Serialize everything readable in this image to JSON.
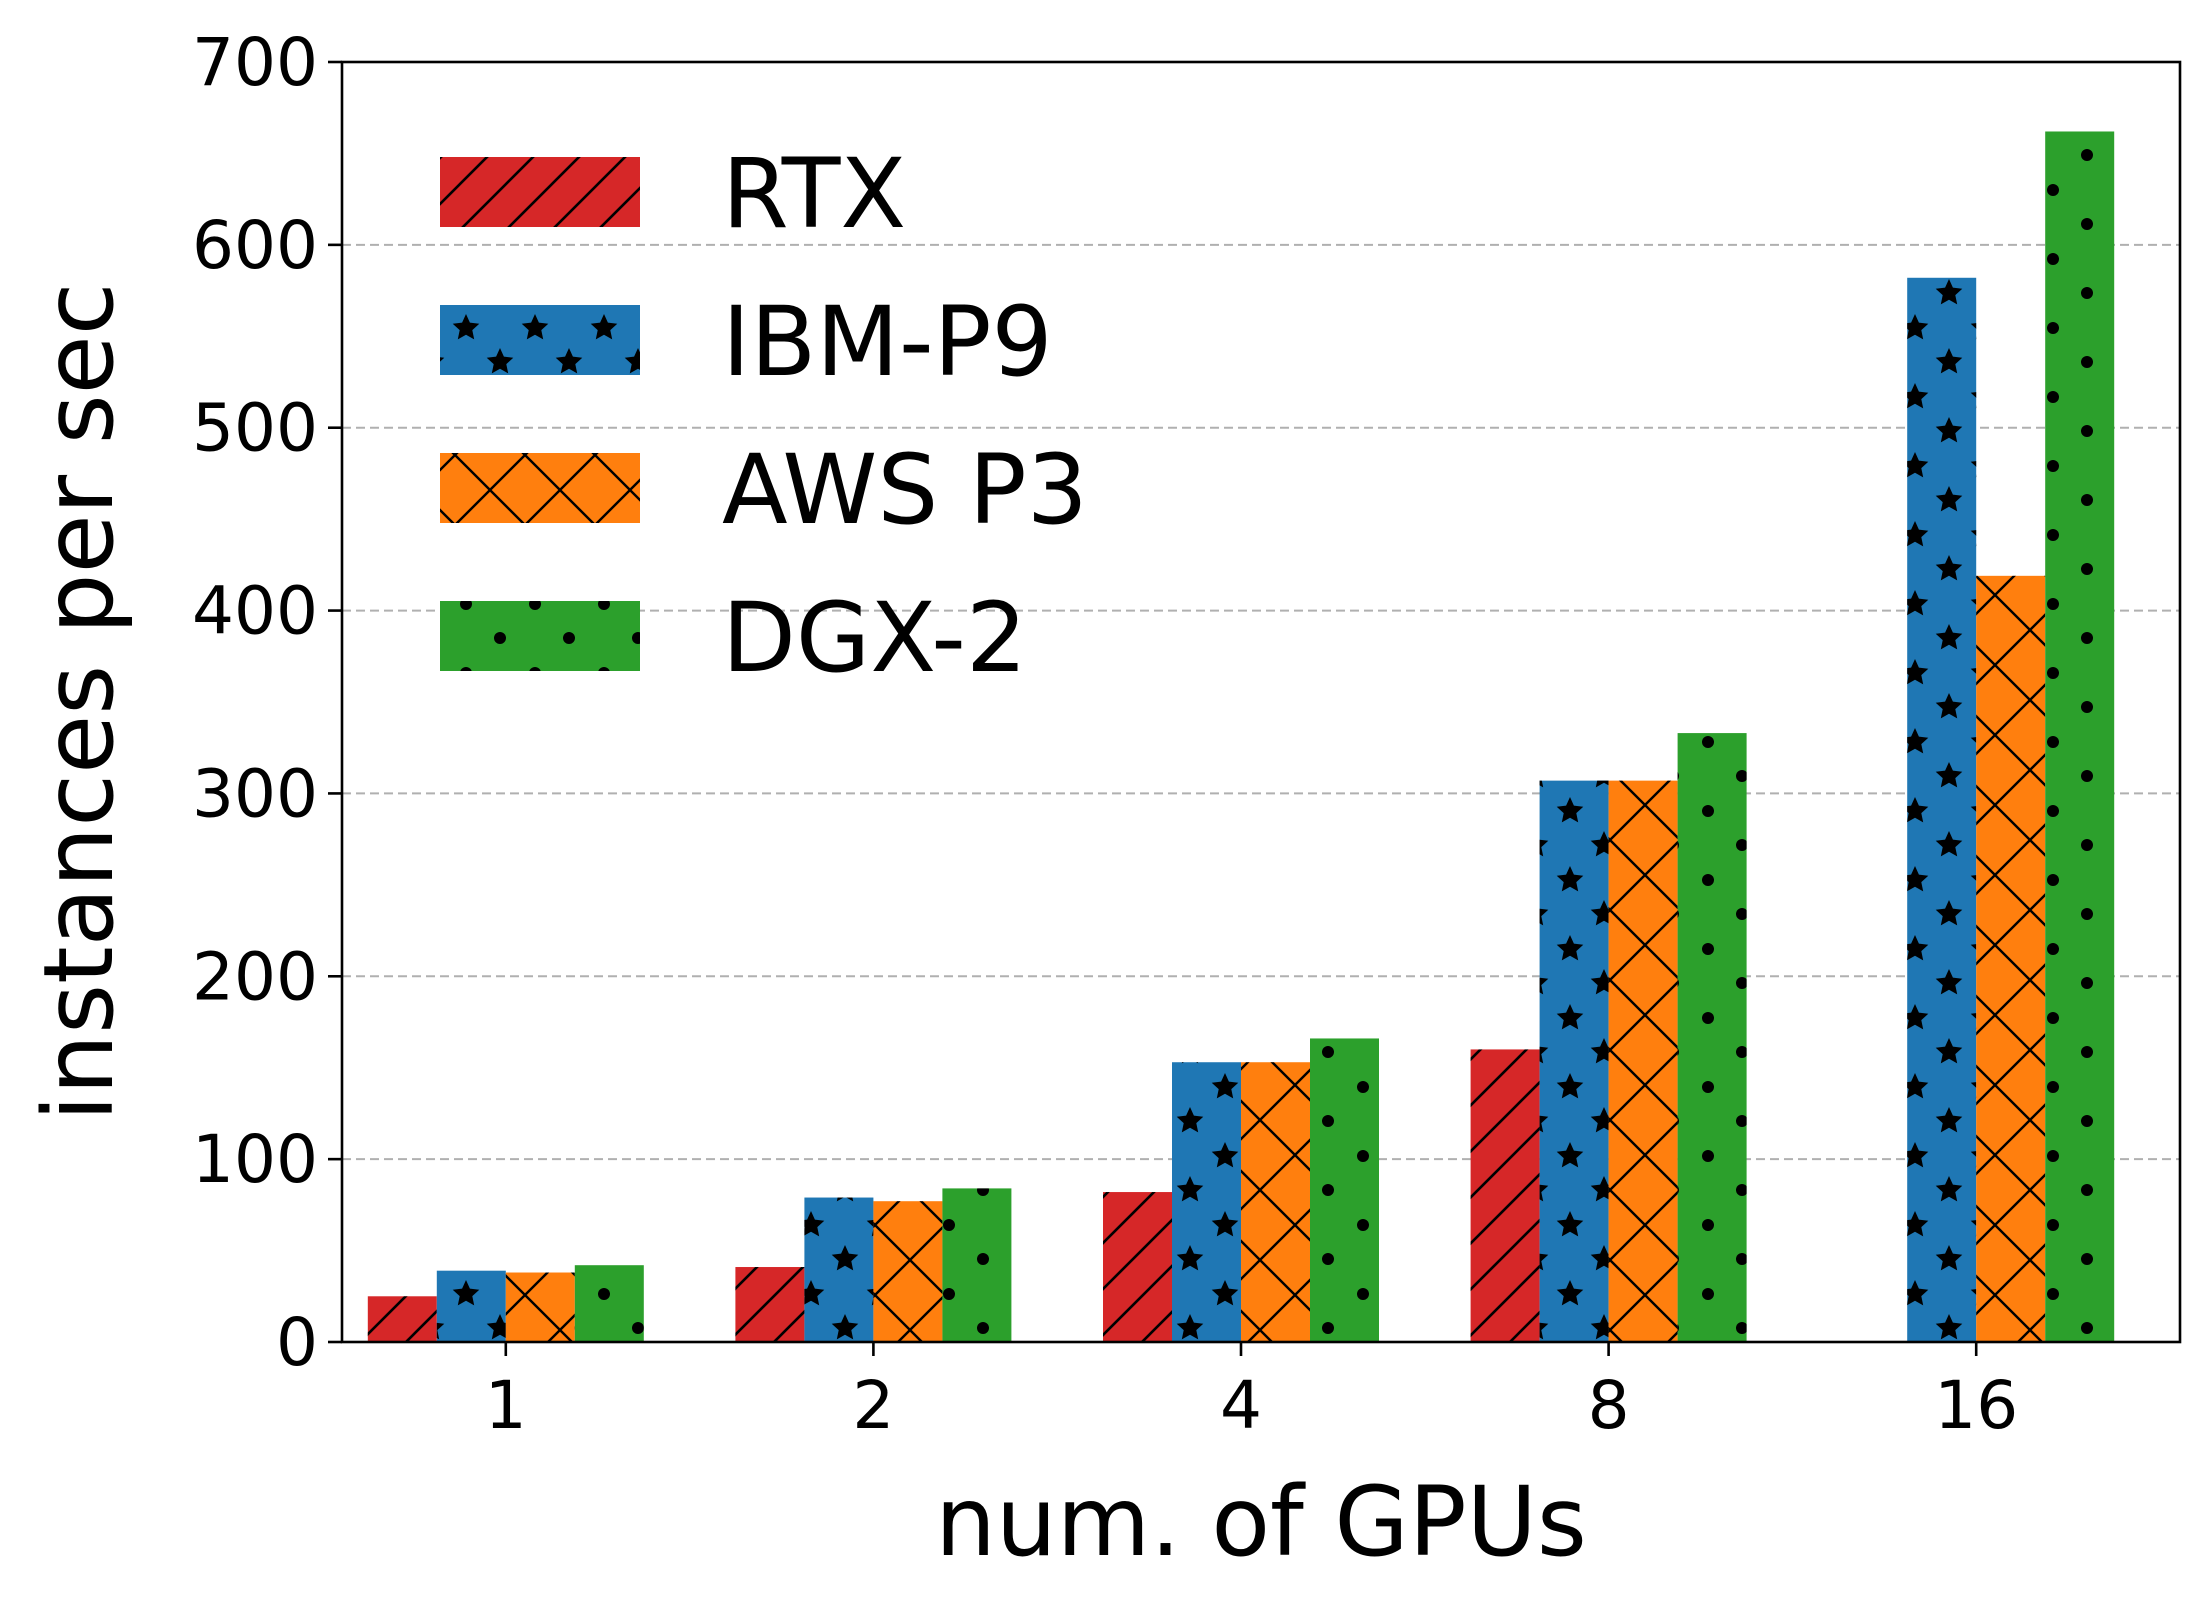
{
  "chart_data": {
    "type": "bar",
    "title": "",
    "xlabel": "num. of GPUs",
    "ylabel": "instances per sec",
    "categories": [
      "1",
      "2",
      "4",
      "8",
      "16"
    ],
    "ylim": [
      0,
      700
    ],
    "yticks": [
      0,
      100,
      200,
      300,
      400,
      500,
      600,
      700
    ],
    "grid": "horizontal-dashed",
    "legend_position": "upper-left",
    "series": [
      {
        "name": "RTX",
        "color": "#d62728",
        "hatch": "diagonal",
        "values": [
          25,
          41,
          82,
          160,
          null
        ]
      },
      {
        "name": "IBM-P9",
        "color": "#1f77b4",
        "hatch": "stars",
        "values": [
          39,
          79,
          153,
          307,
          582
        ]
      },
      {
        "name": "AWS P3",
        "color": "#ff7f0e",
        "hatch": "crosses",
        "values": [
          38,
          77,
          153,
          307,
          419
        ]
      },
      {
        "name": "DGX-2",
        "color": "#2ca02c",
        "hatch": "dots",
        "values": [
          42,
          84,
          166,
          333,
          662
        ]
      }
    ]
  }
}
